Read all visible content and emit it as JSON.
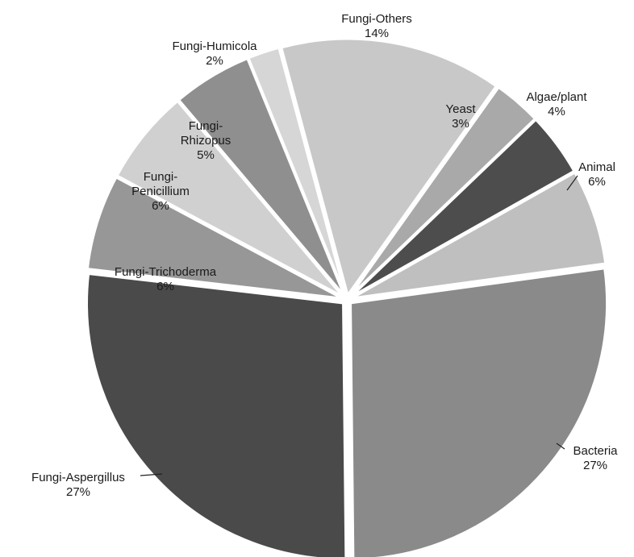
{
  "chart_data": {
    "type": "pie",
    "title": "",
    "unit": "%",
    "slices": [
      {
        "label": "Fungi-Others",
        "value": 14,
        "color": "#c8c8c8"
      },
      {
        "label": "Yeast",
        "value": 3,
        "color": "#a9a9a9"
      },
      {
        "label": "Algae/plant",
        "value": 4,
        "color": "#4d4d4d"
      },
      {
        "label": "Animal",
        "value": 6,
        "color": "#bfbfbf"
      },
      {
        "label": "Bacteria",
        "value": 27,
        "color": "#8a8a8a"
      },
      {
        "label": "Fungi-Aspergillus",
        "value": 27,
        "color": "#4a4a4a"
      },
      {
        "label": "Fungi-Trichoderma",
        "value": 6,
        "color": "#979797"
      },
      {
        "label": "Fungi-Penicillium",
        "value": 6,
        "color": "#d0d0d0"
      },
      {
        "label": "Fungi-Rhizopus",
        "value": 5,
        "color": "#8f8f8f"
      },
      {
        "label": "Fungi-Humicola",
        "value": 2,
        "color": "#d6d6d6"
      }
    ],
    "label_lines": [
      [
        "Fungi-Others",
        "14%"
      ],
      [
        "Yeast",
        "3%"
      ],
      [
        "Algae/plant",
        "4%"
      ],
      [
        "Animal",
        "6%"
      ],
      [
        "Bacteria",
        "27%"
      ],
      [
        "Fungi-Aspergillus",
        "27%"
      ],
      [
        "Fungi-Trichoderma",
        "6%"
      ],
      [
        "Fungi-",
        "Penicillium",
        "6%"
      ],
      [
        "Fungi-",
        "Rhizopus",
        "5%"
      ],
      [
        "Fungi-Humicola",
        "2%"
      ]
    ],
    "legend": "none"
  }
}
